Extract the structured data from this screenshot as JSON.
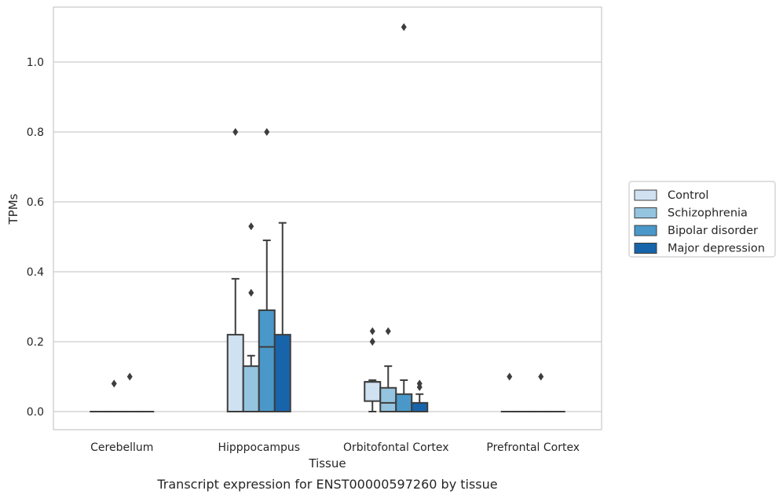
{
  "caption": "Transcript expression for ENST00000597260 by tissue",
  "chart_data": {
    "type": "box",
    "xlabel": "Tissue",
    "ylabel": "TPMs",
    "ylim": [
      -0.05,
      1.16
    ],
    "yticks": [
      0.0,
      0.2,
      0.4,
      0.6,
      0.8,
      1.0
    ],
    "ytick_labels": [
      "0.0",
      "0.2",
      "0.4",
      "0.6",
      "0.8",
      "1.0"
    ],
    "grid": true,
    "legend_position": "right",
    "categories": [
      "Cerebellum",
      "Hipppocampus",
      "Orbitofontal Cortex",
      "Prefrontal Cortex"
    ],
    "series": [
      {
        "name": "Control",
        "color": "#d0e1f2",
        "boxes": [
          {
            "q1": 0,
            "median": 0,
            "q3": 0,
            "whislo": 0,
            "whishi": 0,
            "fliers": []
          },
          {
            "q1": 0,
            "median": 0,
            "q3": 0.22,
            "whislo": 0,
            "whishi": 0.38,
            "fliers": [
              0.8
            ]
          },
          {
            "q1": 0.03,
            "median": 0.085,
            "q3": 0.085,
            "whislo": 0,
            "whishi": 0.09,
            "fliers": [
              0.2,
              0.2,
              0.23
            ]
          },
          {
            "q1": 0,
            "median": 0,
            "q3": 0,
            "whislo": 0,
            "whishi": 0,
            "fliers": [
              0.1
            ]
          }
        ]
      },
      {
        "name": "Schizophrenia",
        "color": "#94c4df",
        "boxes": [
          {
            "q1": 0,
            "median": 0,
            "q3": 0,
            "whislo": 0,
            "whishi": 0,
            "fliers": [
              0.08
            ]
          },
          {
            "q1": 0,
            "median": 0,
            "q3": 0.13,
            "whislo": 0,
            "whishi": 0.16,
            "fliers": [
              0.34,
              0.53
            ]
          },
          {
            "q1": 0,
            "median": 0.025,
            "q3": 0.068,
            "whislo": 0,
            "whishi": 0.13,
            "fliers": [
              0.23
            ]
          },
          {
            "q1": 0,
            "median": 0,
            "q3": 0,
            "whislo": 0,
            "whishi": 0,
            "fliers": []
          }
        ]
      },
      {
        "name": "Bipolar disorder",
        "color": "#4a98c9",
        "boxes": [
          {
            "q1": 0,
            "median": 0,
            "q3": 0,
            "whislo": 0,
            "whishi": 0,
            "fliers": [
              0.1
            ]
          },
          {
            "q1": 0,
            "median": 0.185,
            "q3": 0.29,
            "whislo": 0,
            "whishi": 0.49,
            "fliers": [
              0.8
            ]
          },
          {
            "q1": 0,
            "median": 0,
            "q3": 0.05,
            "whislo": 0,
            "whishi": 0.09,
            "fliers": [
              1.1
            ]
          },
          {
            "q1": 0,
            "median": 0,
            "q3": 0,
            "whislo": 0,
            "whishi": 0,
            "fliers": [
              0.1
            ]
          }
        ]
      },
      {
        "name": "Major depression",
        "color": "#1764ab",
        "boxes": [
          {
            "q1": 0,
            "median": 0,
            "q3": 0,
            "whislo": 0,
            "whishi": 0,
            "fliers": []
          },
          {
            "q1": 0,
            "median": 0,
            "q3": 0.22,
            "whislo": 0,
            "whishi": 0.54,
            "fliers": []
          },
          {
            "q1": 0,
            "median": 0,
            "q3": 0.025,
            "whislo": 0,
            "whishi": 0.05,
            "fliers": [
              0.07,
              0.08
            ]
          },
          {
            "q1": 0,
            "median": 0,
            "q3": 0,
            "whislo": 0,
            "whishi": 0,
            "fliers": []
          }
        ]
      }
    ]
  }
}
